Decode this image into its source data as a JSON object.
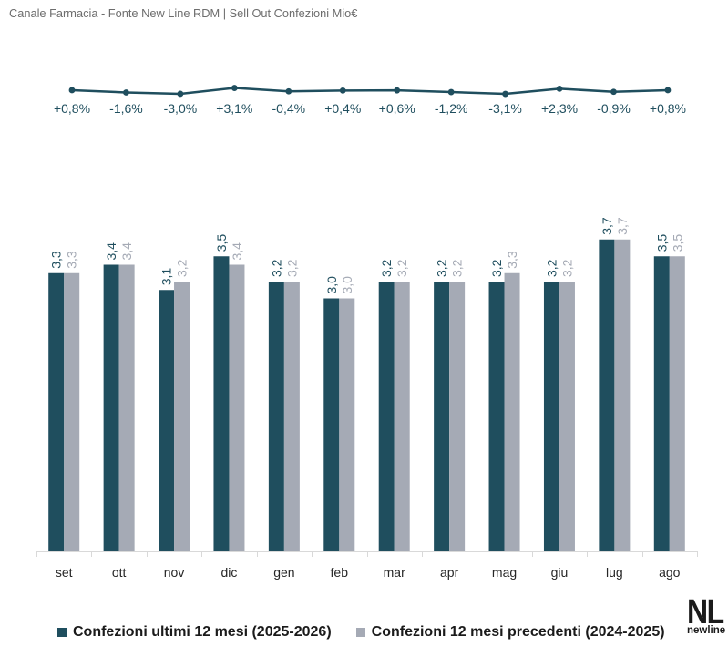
{
  "chart_data": {
    "type": "bar",
    "title": "Canale Farmacia - Fonte New Line RDM | Sell Out Confezioni Mio€",
    "categories": [
      "set",
      "ott",
      "nov",
      "dic",
      "gen",
      "feb",
      "mar",
      "apr",
      "mag",
      "giu",
      "lug",
      "ago"
    ],
    "series": [
      {
        "name": "Confezioni ultimi 12 mesi (2025-2026)",
        "color": "#1f4e5e",
        "values": [
          3.3,
          3.4,
          3.1,
          3.5,
          3.2,
          3.0,
          3.2,
          3.2,
          3.2,
          3.2,
          3.7,
          3.5
        ],
        "labels": [
          "3,3",
          "3,4",
          "3,1",
          "3,5",
          "3,2",
          "3,0",
          "3,2",
          "3,2",
          "3,2",
          "3,2",
          "3,7",
          "3,5"
        ]
      },
      {
        "name": "Confezioni 12 mesi precedenti (2024-2025)",
        "color": "#a5aab5",
        "values": [
          3.3,
          3.4,
          3.2,
          3.4,
          3.2,
          3.0,
          3.2,
          3.2,
          3.3,
          3.2,
          3.7,
          3.5
        ],
        "labels": [
          "3,3",
          "3,4",
          "3,2",
          "3,4",
          "3,2",
          "3,0",
          "3,2",
          "3,2",
          "3,3",
          "3,2",
          "3,7",
          "3,5"
        ]
      }
    ],
    "growth": {
      "type": "line",
      "color": "#1f4e5e",
      "values": [
        0.8,
        -1.6,
        -3.0,
        3.1,
        -0.4,
        0.4,
        0.6,
        -1.2,
        -3.1,
        2.3,
        -0.9,
        0.8
      ],
      "labels": [
        "+0,8%",
        "-1,6%",
        "-3,0%",
        "+3,1%",
        "-0,4%",
        "+0,4%",
        "+0,6%",
        "-1,2%",
        "-3,1%",
        "+2,3%",
        "-0,9%",
        "+0,8%"
      ]
    },
    "ylim": [
      0,
      4
    ],
    "grid": false,
    "legend_position": "bottom"
  },
  "logo": {
    "mark": "NL",
    "wordmark": "newline"
  }
}
